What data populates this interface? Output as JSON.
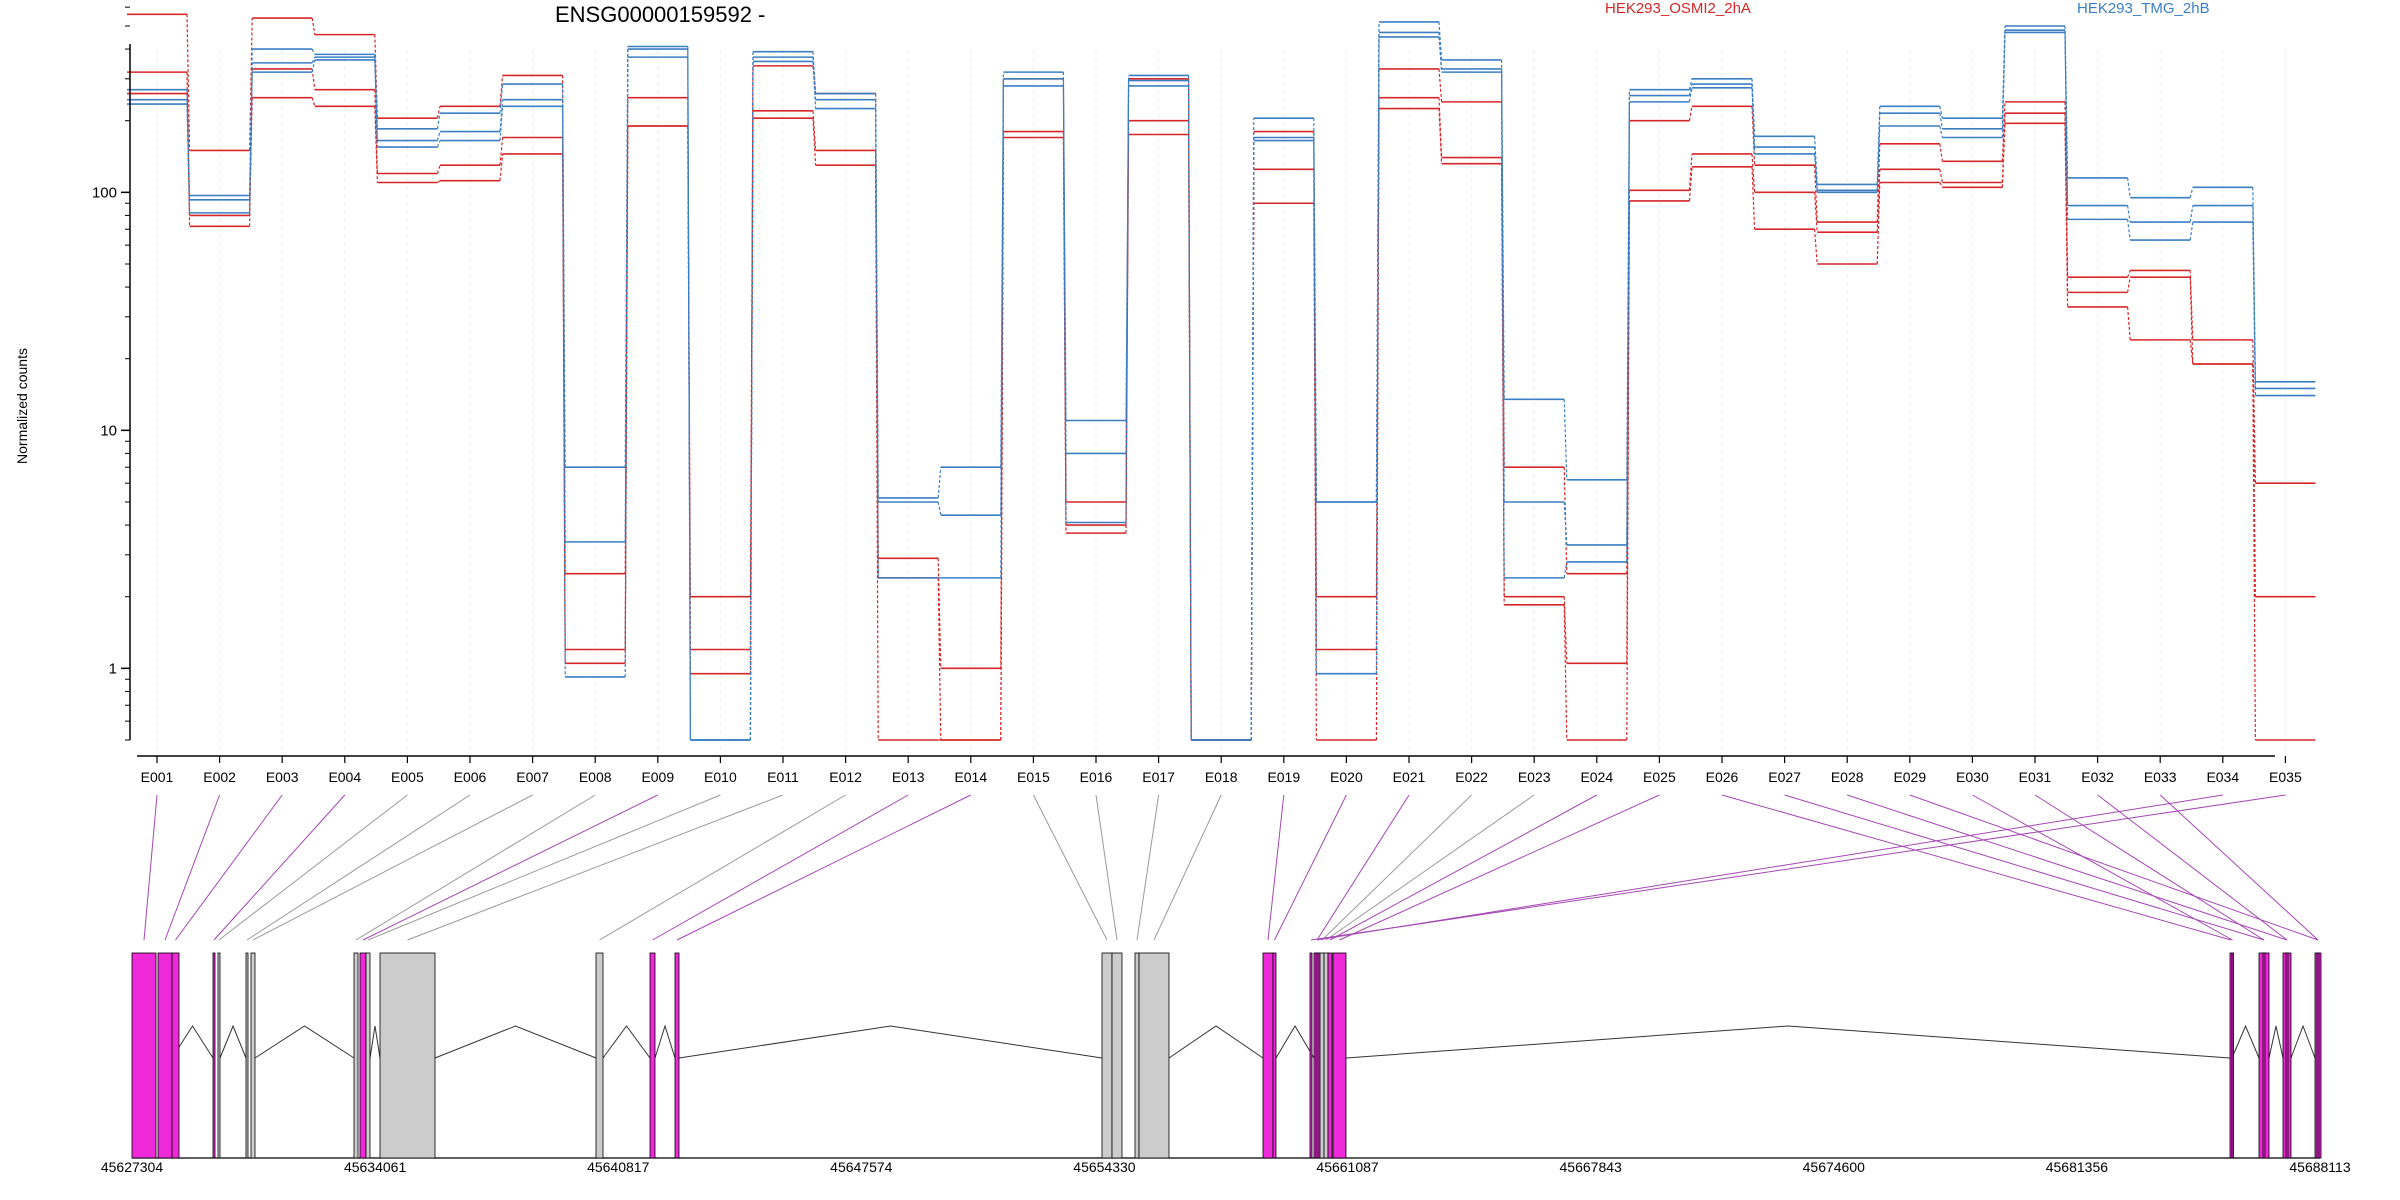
{
  "header": {
    "title": "ENSG00000159592 -",
    "y_axis_label": "Normalized counts"
  },
  "legend": [
    {
      "label": "HEK293_OSMI2_2hA",
      "color": "#d62728"
    },
    {
      "label": "HEK293_TMG_2hB",
      "color": "#3a7fc4"
    }
  ],
  "chart_data": {
    "type": "line",
    "scale": "log",
    "ylabel": "Normalized counts",
    "ylim": [
      0.5,
      800
    ],
    "yticks": [
      {
        "v": 1,
        "label": "1"
      },
      {
        "v": 10,
        "label": "10"
      },
      {
        "v": 100,
        "label": "100"
      }
    ],
    "categories": [
      "E001",
      "E002",
      "E003",
      "E004",
      "E005",
      "E006",
      "E007",
      "E008",
      "E009",
      "E010",
      "E011",
      "E012",
      "E013",
      "E014",
      "E015",
      "E016",
      "E017",
      "E018",
      "E019",
      "E020",
      "E021",
      "E022",
      "E023",
      "E024",
      "E025",
      "E026",
      "E027",
      "E028",
      "E029",
      "E030",
      "E031",
      "E032",
      "E033",
      "E034",
      "E035"
    ],
    "series": [
      {
        "color": "#d62728",
        "values": [
          560,
          150,
          540,
          460,
          205,
          230,
          310,
          2.5,
          250,
          2.0,
          340,
          260,
          2.9,
          1.0,
          300,
          5.0,
          300,
          0.5,
          180,
          2.0,
          330,
          240,
          7.0,
          2.5,
          200,
          230,
          130,
          75,
          160,
          135,
          240,
          44,
          47,
          24,
          6.0
        ]
      },
      {
        "color": "#d62728",
        "values": [
          320,
          72,
          330,
          270,
          120,
          130,
          170,
          1.2,
          190,
          1.2,
          220,
          150,
          2.4,
          0.5,
          180,
          4.0,
          200,
          0.5,
          125,
          1.2,
          250,
          140,
          2.0,
          1.05,
          102,
          145,
          100,
          68,
          125,
          110,
          215,
          38,
          44,
          19,
          2.0
        ]
      },
      {
        "color": "#d62728",
        "values": [
          260,
          80,
          250,
          230,
          110,
          112,
          145,
          1.05,
          190,
          0.95,
          205,
          130,
          0.5,
          0.5,
          170,
          3.7,
          175,
          0.5,
          90,
          0.5,
          225,
          132,
          1.85,
          0.5,
          92,
          128,
          70,
          50,
          110,
          105,
          195,
          33,
          24,
          19,
          0.5
        ]
      },
      {
        "color": "#3a7fc4",
        "values": [
          270,
          97,
          400,
          380,
          185,
          215,
          285,
          7.0,
          410,
          0.5,
          390,
          260,
          5.2,
          7.0,
          320,
          11,
          310,
          0.5,
          205,
          5.0,
          520,
          360,
          13.5,
          6.2,
          270,
          300,
          172,
          108,
          230,
          205,
          500,
          115,
          95,
          105,
          16
        ]
      },
      {
        "color": "#3a7fc4",
        "values": [
          245,
          93,
          350,
          370,
          165,
          180,
          245,
          3.4,
          400,
          0.5,
          370,
          245,
          5.0,
          4.4,
          300,
          8.0,
          295,
          0.5,
          170,
          5.0,
          470,
          330,
          5.0,
          3.3,
          255,
          285,
          155,
          102,
          215,
          185,
          480,
          88,
          75,
          88,
          15
        ]
      },
      {
        "color": "#3a7fc4",
        "values": [
          235,
          82,
          320,
          360,
          155,
          165,
          230,
          0.92,
          370,
          0.5,
          355,
          225,
          2.4,
          2.4,
          280,
          4.1,
          280,
          0.5,
          165,
          0.95,
          450,
          320,
          2.4,
          2.8,
          240,
          275,
          145,
          100,
          190,
          170,
          470,
          77,
          63,
          75,
          14
        ]
      }
    ]
  },
  "gene_model": {
    "coord_labels": [
      "45627304",
      "45634061",
      "45640817",
      "45647574",
      "45654330",
      "45661087",
      "45667843",
      "45674600",
      "45681356",
      "45688113"
    ],
    "highlight_color": "#ee2ad8",
    "plain_color": "#cccccc",
    "link_color_highlight": "#a547b4",
    "link_color_plain": "#9a9a9a",
    "exon_flags": [
      1,
      1,
      1,
      1,
      0,
      0,
      0,
      0,
      1,
      0,
      0,
      0,
      1,
      1,
      0,
      0,
      0,
      0,
      1,
      1,
      1,
      0,
      0,
      1,
      1,
      1,
      1,
      1,
      1,
      1,
      1,
      1,
      1,
      1,
      1
    ]
  }
}
